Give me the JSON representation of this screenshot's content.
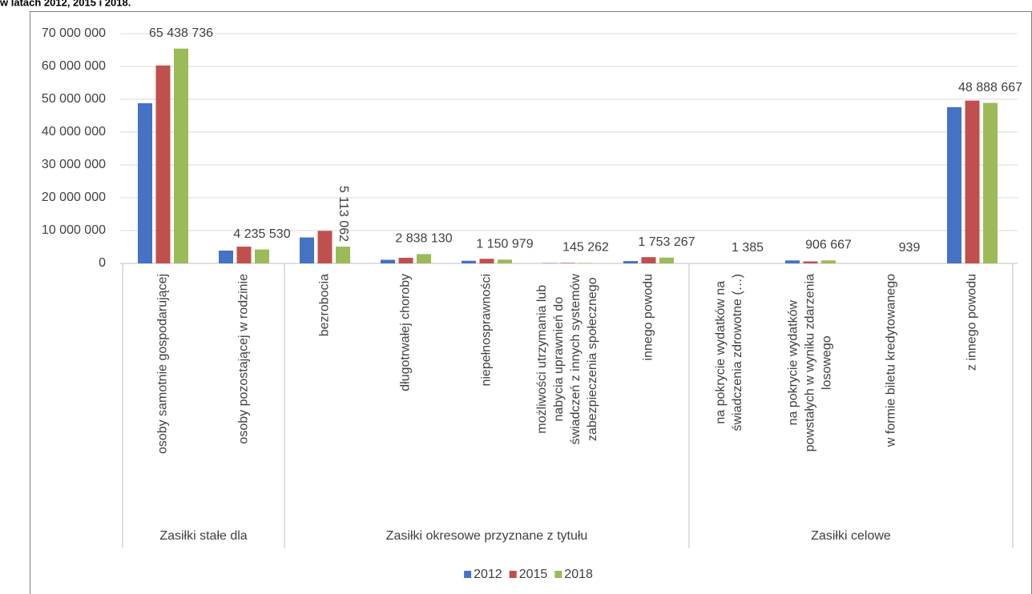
{
  "chart_data": {
    "type": "bar",
    "title": "w latach 2012, 2015 i 2018.",
    "groups": [
      {
        "name": "Zasiłki stałe dla",
        "categories": [
          [
            "osoby samotnie gospodarującej"
          ],
          [
            "osoby pozostającej w rodzinie"
          ]
        ]
      },
      {
        "name": "Zasiłki okresowe przyznane z tytułu",
        "categories": [
          [
            "bezrobocia"
          ],
          [
            "długotrwałej choroby"
          ],
          [
            "niepełnosprawności"
          ],
          [
            "możliwości utrzymania lub",
            "nabycia uprawnień do",
            "świadczeń z innych systemów",
            "zabezpieczenia społecznego"
          ],
          [
            "innego powodu"
          ]
        ]
      },
      {
        "name": "Zasiłki celowe",
        "categories": [
          [
            "na pokrycie wydatków na",
            "świadczenia zdrowotne (…)"
          ],
          [
            "na pokrycie wydatków",
            "powstałych w wyniku zdarzenia",
            "losowego"
          ],
          [
            "w formie biletu kredytowanego"
          ],
          [
            "z innego powodu"
          ]
        ]
      }
    ],
    "series": [
      {
        "name": "2012",
        "color": "#4472c4",
        "values": [
          48800000,
          3900000,
          7900000,
          1100000,
          800000,
          100000,
          700000,
          2000,
          900000,
          1000,
          47600000
        ]
      },
      {
        "name": "2015",
        "color": "#c0504d",
        "values": [
          60300000,
          5100000,
          9900000,
          1700000,
          1400000,
          150000,
          1900000,
          1500,
          600000,
          800,
          49600000
        ]
      },
      {
        "name": "2018",
        "color": "#9bbb59",
        "values": [
          65438736,
          4235530,
          5113062,
          2838130,
          1150979,
          145262,
          1753267,
          1385,
          906667,
          939,
          48888667
        ],
        "value_labels": [
          "65 438 736",
          "4 235 530",
          "5 113 062",
          "2 838 130",
          "1 150 979",
          "145 262",
          "1 753 267",
          "1 385",
          "906 667",
          "939",
          "48 888 667"
        ]
      }
    ],
    "ylim": [
      0,
      70000000
    ],
    "yticks": [
      0,
      {
        "value": 10000000,
        "label": "10 000 000"
      },
      {
        "value": 20000000,
        "label": "20 000 000"
      },
      {
        "value": 30000000,
        "label": "30 000 000"
      },
      {
        "value": 40000000,
        "label": "40 000 000"
      },
      {
        "value": 50000000,
        "label": "50 000 000"
      },
      {
        "value": 60000000,
        "label": "60 000 000"
      },
      {
        "value": 70000000,
        "label": "70 000 000"
      }
    ],
    "grid": true,
    "legend": "bottom"
  }
}
